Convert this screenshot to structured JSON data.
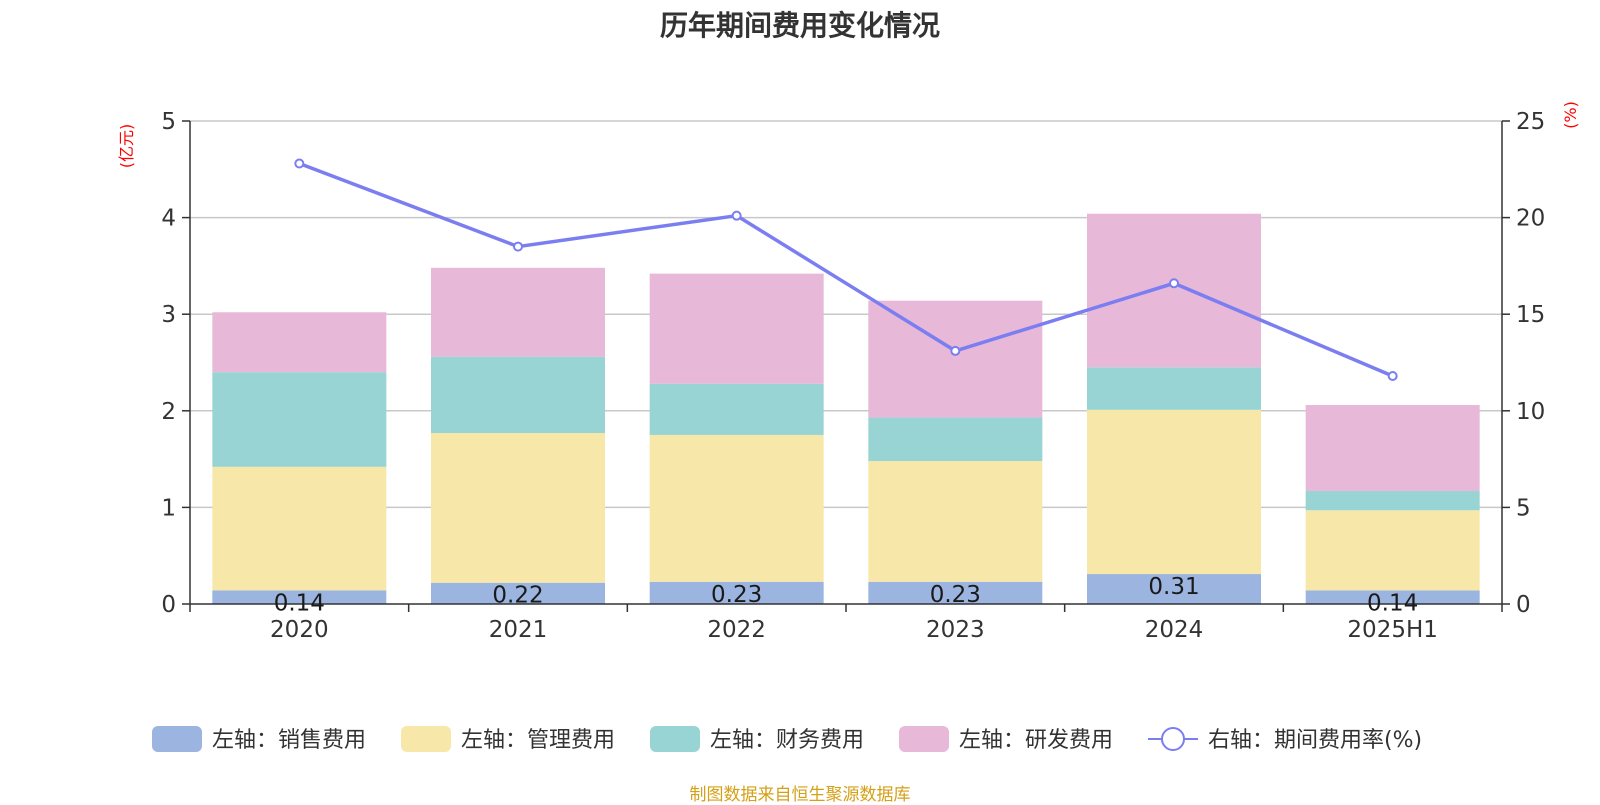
{
  "chart_data": {
    "type": "bar",
    "stacked": true,
    "title": "历年期间费用变化情况",
    "categories": [
      "2020",
      "2021",
      "2022",
      "2023",
      "2024",
      "2025H1"
    ],
    "series": [
      {
        "name": "左轴：销售费用",
        "axis": "left",
        "values": [
          0.14,
          0.22,
          0.23,
          0.23,
          0.31,
          0.14
        ],
        "color": "#9bb5e0",
        "labels": [
          "0.14",
          "0.22",
          "0.23",
          "0.23",
          "0.31",
          "0.14"
        ]
      },
      {
        "name": "左轴：管理费用",
        "axis": "left",
        "values": [
          1.28,
          1.55,
          1.52,
          1.25,
          1.7,
          0.83
        ],
        "color": "#f7e7a8"
      },
      {
        "name": "左轴：财务费用",
        "axis": "left",
        "values": [
          0.98,
          0.79,
          0.53,
          0.45,
          0.44,
          0.2
        ],
        "color": "#98d4d4"
      },
      {
        "name": "左轴：研发费用",
        "axis": "left",
        "values": [
          0.62,
          0.92,
          1.14,
          1.21,
          1.59,
          0.89
        ],
        "color": "#e8b8d8"
      },
      {
        "name": "右轴：期间费用率(%)",
        "axis": "right",
        "type": "line",
        "values": [
          22.8,
          18.5,
          20.1,
          13.1,
          16.6,
          11.8
        ],
        "color": "#7b7ef0"
      }
    ],
    "y_left": {
      "unit": "(亿元)",
      "ylim": [
        0,
        5
      ],
      "ticks": [
        "0",
        "1",
        "2",
        "3",
        "4",
        "5"
      ]
    },
    "y_right": {
      "unit": "(%)",
      "ylim": [
        0,
        25
      ],
      "ticks": [
        "0",
        "5",
        "10",
        "15",
        "20",
        "25"
      ]
    },
    "grid": true,
    "legend_position": "bottom"
  },
  "footer": {
    "source": "制图数据来自恒生聚源数据库"
  }
}
